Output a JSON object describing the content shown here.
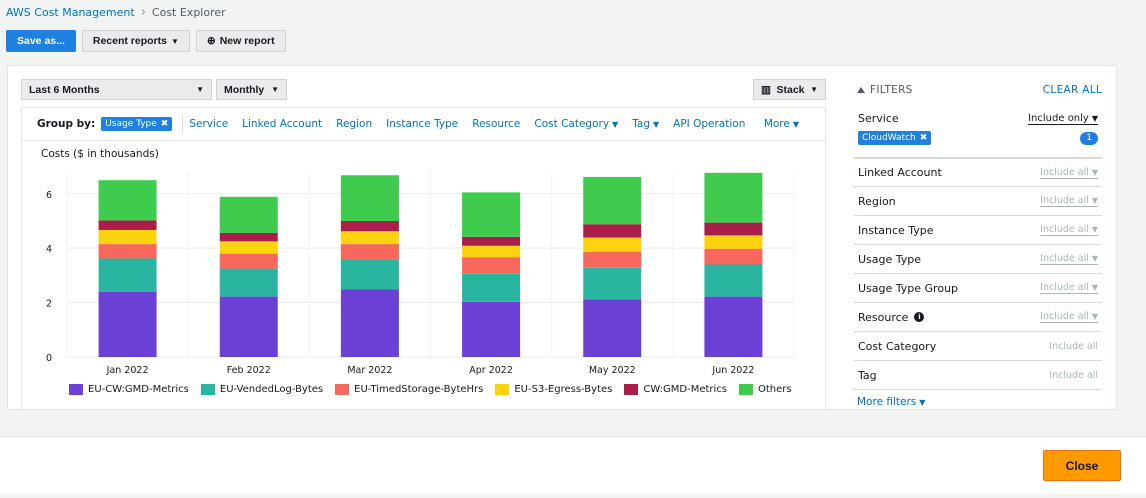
{
  "breadcrumb": {
    "root": "AWS Cost Management",
    "current": "Cost Explorer"
  },
  "toolbar": {
    "save_label": "Save as...",
    "recent_label": "Recent reports",
    "new_label": "New report"
  },
  "controls": {
    "range": "Last 6 Months",
    "granularity": "Monthly",
    "stack": "Stack"
  },
  "groupby": {
    "label": "Group by:",
    "chip": "Usage Type",
    "options": [
      "Service",
      "Linked Account",
      "Region",
      "Instance Type",
      "Resource",
      "Cost Category",
      "Tag",
      "API Operation"
    ],
    "more": "More"
  },
  "chart_data": {
    "type": "bar",
    "stacked": true,
    "ylabel": "Costs ($ in thousands)",
    "ylim": [
      0,
      6.8
    ],
    "yticks": [
      0,
      2,
      4,
      6
    ],
    "grid": true,
    "categories": [
      "Jan 2022",
      "Feb 2022",
      "Mar 2022",
      "Apr 2022",
      "May 2022",
      "Jun 2022"
    ],
    "series": [
      {
        "name": "EU-CW:GMD-Metrics",
        "color": "#6b40d4",
        "values": [
          2.4,
          2.22,
          2.48,
          2.03,
          2.12,
          2.22
        ]
      },
      {
        "name": "EU-VendedLog-Bytes",
        "color": "#2ab5a0",
        "values": [
          1.22,
          1.03,
          1.1,
          1.03,
          1.16,
          1.18
        ]
      },
      {
        "name": "EU-TimedStorage-ByteHrs",
        "color": "#f7675c",
        "values": [
          0.53,
          0.55,
          0.57,
          0.61,
          0.59,
          0.58
        ]
      },
      {
        "name": "EU-S3-Egress-Bytes",
        "color": "#fbd30f",
        "values": [
          0.52,
          0.45,
          0.47,
          0.42,
          0.52,
          0.49
        ]
      },
      {
        "name": "CW:GMD-Metrics",
        "color": "#aa1e4a",
        "values": [
          0.35,
          0.31,
          0.38,
          0.33,
          0.49,
          0.47
        ]
      },
      {
        "name": "Others",
        "color": "#3ecb4e",
        "values": [
          1.48,
          1.33,
          1.68,
          1.63,
          1.74,
          1.83
        ]
      }
    ]
  },
  "filters": {
    "title": "FILTERS",
    "clear_all": "CLEAR ALL",
    "service": {
      "label": "Service",
      "value": "Include only",
      "chip": "CloudWatch",
      "count": "1"
    },
    "rows": [
      {
        "label": "Linked Account",
        "value": "Include all"
      },
      {
        "label": "Region",
        "value": "Include all"
      },
      {
        "label": "Instance Type",
        "value": "Include all"
      },
      {
        "label": "Usage Type",
        "value": "Include all"
      },
      {
        "label": "Usage Type Group",
        "value": "Include all"
      },
      {
        "label": "Resource",
        "value": "Include all"
      },
      {
        "label": "Cost Category",
        "value": "Include all"
      },
      {
        "label": "Tag",
        "value": "Include all"
      }
    ],
    "more": "More filters"
  },
  "footer": {
    "close_label": "Close"
  }
}
